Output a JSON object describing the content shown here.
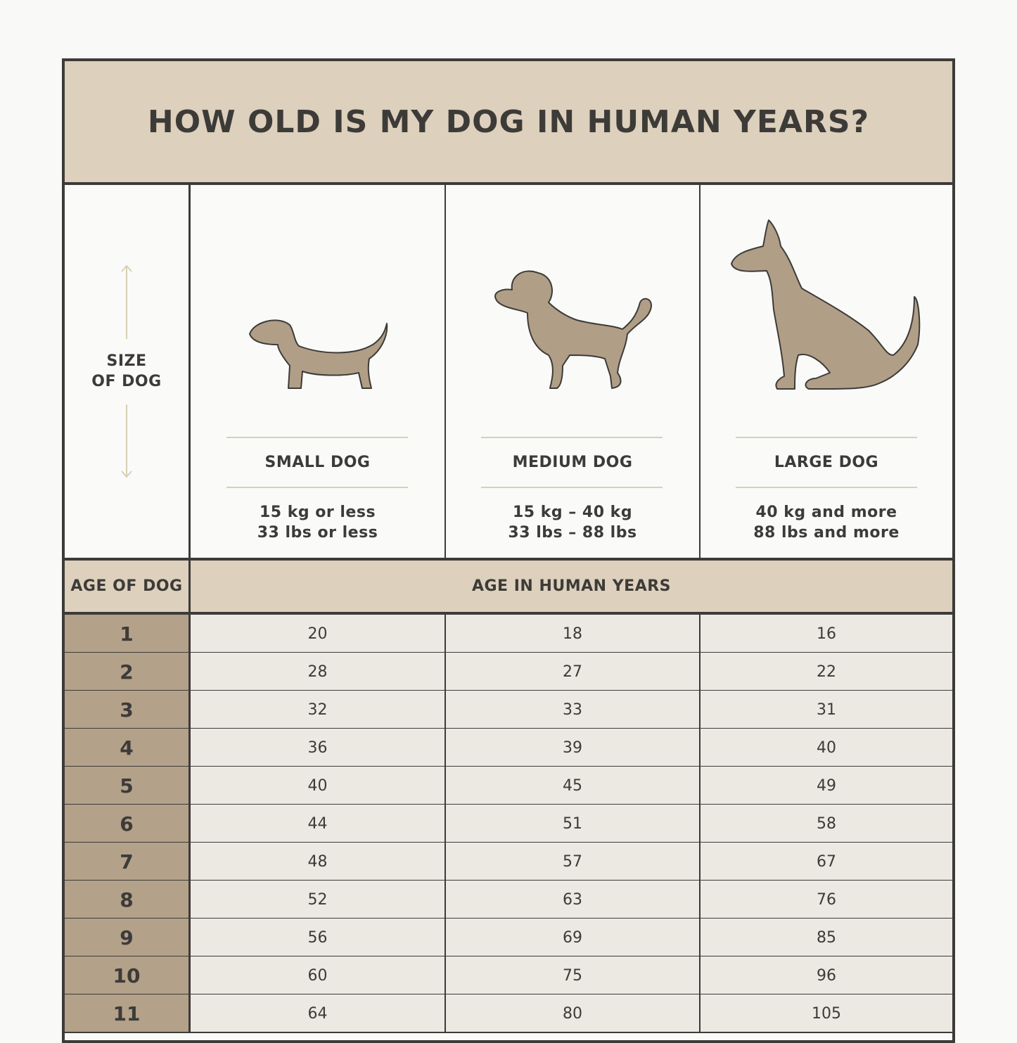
{
  "header": {
    "title": "HOW OLD IS MY DOG IN HUMAN YEARS?"
  },
  "size_label": [
    "SIZE",
    "OF DOG"
  ],
  "sizes": [
    {
      "name": "SMALL DOG",
      "weight": [
        "15 kg or less",
        "33 lbs or less"
      ]
    },
    {
      "name": "MEDIUM DOG",
      "weight": [
        "15 kg – 40 kg",
        "33 lbs – 88 lbs"
      ]
    },
    {
      "name": "LARGE DOG",
      "weight": [
        "40 kg and more",
        "88 lbs and more"
      ]
    }
  ],
  "table": {
    "header": [
      "AGE OF DOG",
      "AGE IN HUMAN YEARS"
    ],
    "rows": [
      [
        1,
        20,
        18,
        16
      ],
      [
        2,
        28,
        27,
        22
      ],
      [
        3,
        32,
        33,
        31
      ],
      [
        4,
        36,
        39,
        40
      ],
      [
        5,
        40,
        45,
        49
      ],
      [
        6,
        44,
        51,
        58
      ],
      [
        7,
        48,
        57,
        67
      ],
      [
        8,
        52,
        63,
        76
      ],
      [
        9,
        56,
        69,
        85
      ],
      [
        10,
        60,
        75,
        96
      ],
      [
        11,
        64,
        80,
        105
      ]
    ]
  }
}
